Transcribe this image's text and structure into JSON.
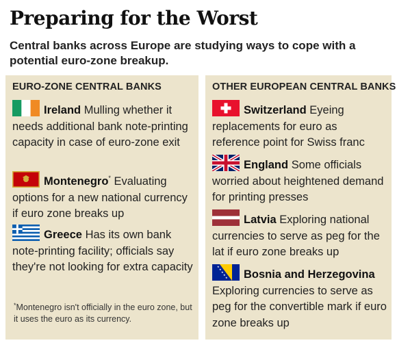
{
  "headline": "Preparing for the Worst",
  "subheadline": "Central banks across Europe are studying ways to cope with a potential euro-zone breakup.",
  "euro_zone": {
    "heading": "EURO-ZONE CENTRAL BANKS",
    "entries": [
      {
        "country": "Ireland",
        "flag": "ireland-flag",
        "text": "Mulling whether it needs additional bank note-printing capacity in case of euro-zone exit"
      },
      {
        "country": "Montenegro",
        "marker": "*",
        "flag": "montenegro-flag",
        "text": "Evaluating options for a new national currency if euro zone breaks up"
      },
      {
        "country": "Greece",
        "flag": "greece-flag",
        "text": "Has its own bank note-printing facility; officials say they're not looking for extra capacity"
      }
    ],
    "footnote": {
      "marker": "*",
      "text": "Montenegro isn't officially in the euro zone, but it uses the euro as its currency."
    }
  },
  "other_european": {
    "heading": "OTHER EUROPEAN CENTRAL BANKS",
    "entries": [
      {
        "country": "Switzerland",
        "flag": "switzerland-flag",
        "text": "Eyeing replacements for euro as reference point for Swiss franc"
      },
      {
        "country": "England",
        "flag": "united-kingdom-flag",
        "text": "Some officials worried about heightened demand for printing presses"
      },
      {
        "country": "Latvia",
        "flag": "latvia-flag",
        "text": "Exploring national currencies to serve as peg for the lat if euro zone breaks up"
      },
      {
        "country": "Bosnia and Herzegovina",
        "flag": "bosnia-flag",
        "text": "Exploring currencies to serve as peg for the convertible mark if euro zone breaks up"
      }
    ]
  },
  "colors": {
    "panel_background": "#ece4cc",
    "text": "#1a1a1a"
  }
}
